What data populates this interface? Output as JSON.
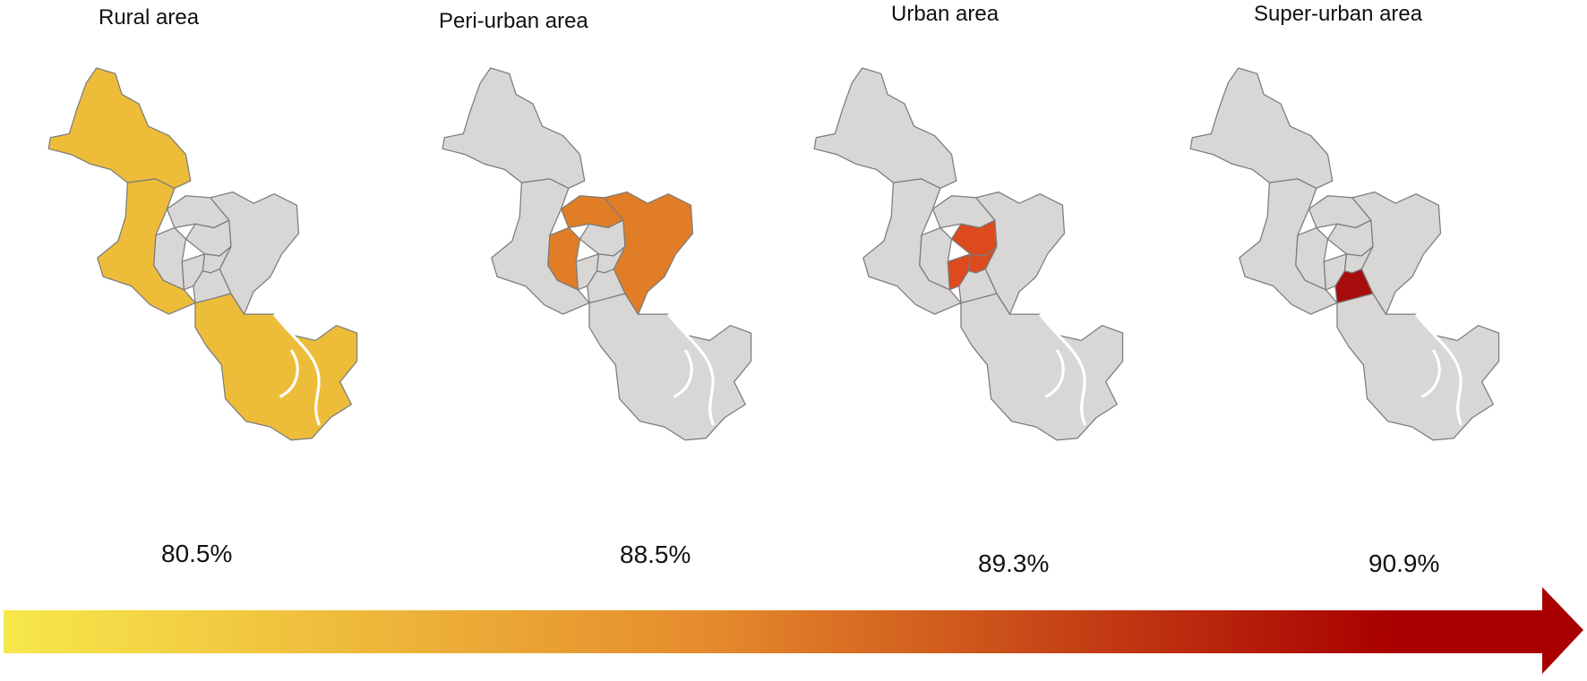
{
  "panels": [
    {
      "title": "Rural area",
      "percent": "80.5%",
      "highlight": "rural"
    },
    {
      "title": "Peri-urban area",
      "percent": "88.5%",
      "highlight": "periurban"
    },
    {
      "title": "Urban area",
      "percent": "89.3%",
      "highlight": "urban"
    },
    {
      "title": "Super-urban area",
      "percent": "90.9%",
      "highlight": "superurban"
    }
  ],
  "colors": {
    "base": "#d9d6d6",
    "border": "#7c7c7c",
    "rural": "#edbd39",
    "periurban": "#e07d26",
    "urban": "#dc4a1d",
    "superurban": "#a80d0d",
    "arrow_start": "#f7e84a",
    "arrow_mid": "#e58a2c",
    "arrow_end": "#a80000"
  }
}
